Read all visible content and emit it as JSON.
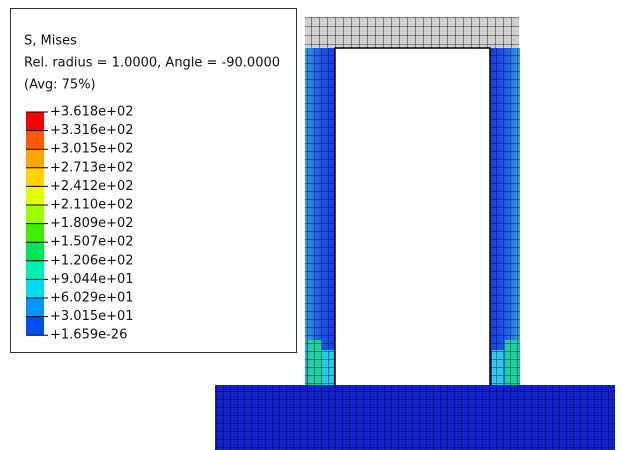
{
  "legend": {
    "title": "S, Mises",
    "subtitle": "Rel. radius = 1.0000, Angle = -90.0000",
    "average": "(Avg: 75%)",
    "labels": [
      "+3.618e+02",
      "+3.316e+02",
      "+3.015e+02",
      "+2.713e+02",
      "+2.412e+02",
      "+2.110e+02",
      "+1.809e+02",
      "+1.507e+02",
      "+1.206e+02",
      "+9.044e+01",
      "+6.029e+01",
      "+3.015e+01",
      "+1.659e-26"
    ],
    "colors": [
      "#ff0000",
      "#ff5a00",
      "#ffa500",
      "#ffd200",
      "#e6ff00",
      "#9bff00",
      "#3cf000",
      "#00e65a",
      "#00f0b4",
      "#00dcf0",
      "#0096ff",
      "#0050f0"
    ]
  }
}
